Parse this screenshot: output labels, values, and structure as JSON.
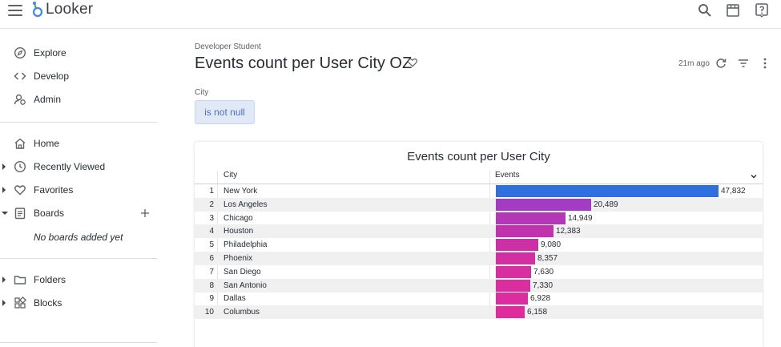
{
  "app": {
    "name": "Looker"
  },
  "sidebar": {
    "primary": [
      {
        "label": "Explore",
        "icon": "compass-icon"
      },
      {
        "label": "Develop",
        "icon": "code-icon"
      },
      {
        "label": "Admin",
        "icon": "admin-icon"
      }
    ],
    "secondary": [
      {
        "label": "Home",
        "icon": "home-icon"
      },
      {
        "label": "Recently Viewed",
        "icon": "clock-icon"
      },
      {
        "label": "Favorites",
        "icon": "heart-icon"
      },
      {
        "label": "Boards",
        "icon": "board-icon"
      }
    ],
    "boards_empty": "No boards added yet",
    "tertiary": [
      {
        "label": "Folders",
        "icon": "folder-icon"
      },
      {
        "label": "Blocks",
        "icon": "blocks-icon"
      }
    ]
  },
  "dashboard": {
    "breadcrumb": "Developer Student",
    "title": "Events count per User City OZ",
    "updated": "21m ago"
  },
  "filter": {
    "label": "City",
    "value": "is not null"
  },
  "tile": {
    "title": "Events count per User City",
    "columns": [
      "City",
      "Events"
    ]
  },
  "chart_data": {
    "type": "table",
    "title": "Events count per User City",
    "columns": [
      "City",
      "Events"
    ],
    "rows": [
      {
        "rank": "1",
        "city": "New York",
        "events": 47832,
        "events_label": "47,832",
        "color": "#2f6fde"
      },
      {
        "rank": "2",
        "city": "Los Angeles",
        "events": 20489,
        "events_label": "20,489",
        "color": "#a43bc5"
      },
      {
        "rank": "3",
        "city": "Chicago",
        "events": 14949,
        "events_label": "14,949",
        "color": "#b337b6"
      },
      {
        "rank": "4",
        "city": "Houston",
        "events": 12383,
        "events_label": "12,383",
        "color": "#c133ac"
      },
      {
        "rank": "5",
        "city": "Philadelphia",
        "events": 9080,
        "events_label": "9,080",
        "color": "#ce2fa6"
      },
      {
        "rank": "6",
        "city": "Phoenix",
        "events": 8357,
        "events_label": "8,357",
        "color": "#d42ea3"
      },
      {
        "rank": "7",
        "city": "San Diego",
        "events": 7630,
        "events_label": "7,630",
        "color": "#d92da1"
      },
      {
        "rank": "8",
        "city": "San Antonio",
        "events": 7330,
        "events_label": "7,330",
        "color": "#db2ca0"
      },
      {
        "rank": "9",
        "city": "Dallas",
        "events": 6928,
        "events_label": "6,928",
        "color": "#dd2c9f"
      },
      {
        "rank": "10",
        "city": "Columbus",
        "events": 6158,
        "events_label": "6,158",
        "color": "#e02b9d"
      }
    ],
    "xlim": [
      0,
      47832
    ]
  }
}
